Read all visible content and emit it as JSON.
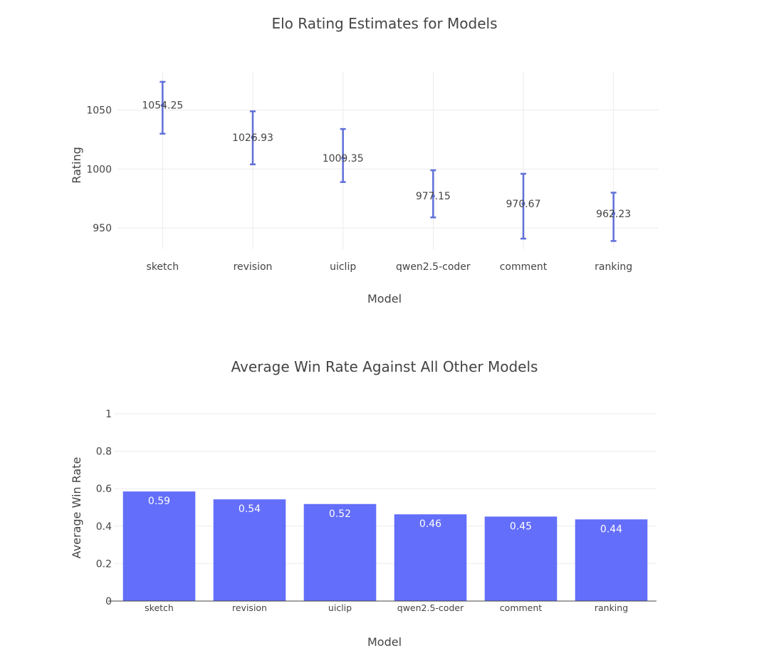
{
  "chart_data": [
    {
      "type": "scatter",
      "title": "Elo Rating Estimates for Models",
      "xlabel": "Model",
      "ylabel": "Rating",
      "categories": [
        "sketch",
        "revision",
        "uiclip",
        "qwen2.5-coder",
        "comment",
        "ranking"
      ],
      "values": [
        1054.25,
        1026.93,
        1009.35,
        977.15,
        970.67,
        962.23
      ],
      "labels": [
        "1054.25",
        "1026.93",
        "1009.35",
        "977.15",
        "970.67",
        "962.23"
      ],
      "error_low": [
        1030,
        1004,
        989,
        959,
        941,
        939
      ],
      "error_high": [
        1074,
        1049,
        1034,
        999,
        996,
        980
      ],
      "yticks": [
        950,
        1000,
        1050
      ],
      "ytick_labels": [
        "950",
        "1000",
        "1050"
      ],
      "ylim": [
        932,
        1083
      ],
      "grid": true,
      "color": "#5f6fd8"
    },
    {
      "type": "bar",
      "title": "Average Win Rate Against All Other Models",
      "xlabel": "Model",
      "ylabel": "Average Win Rate",
      "categories": [
        "sketch",
        "revision",
        "uiclip",
        "qwen2.5-coder",
        "comment",
        "ranking"
      ],
      "values": [
        0.585,
        0.543,
        0.518,
        0.463,
        0.451,
        0.436
      ],
      "labels": [
        "0.59",
        "0.54",
        "0.52",
        "0.46",
        "0.45",
        "0.44"
      ],
      "yticks": [
        0,
        0.2,
        0.4,
        0.6,
        0.8,
        1
      ],
      "ytick_labels": [
        "0",
        "0.2",
        "0.4",
        "0.6",
        "0.8",
        "1"
      ],
      "ylim": [
        0,
        1
      ],
      "grid": true,
      "color": "#636efa"
    }
  ]
}
